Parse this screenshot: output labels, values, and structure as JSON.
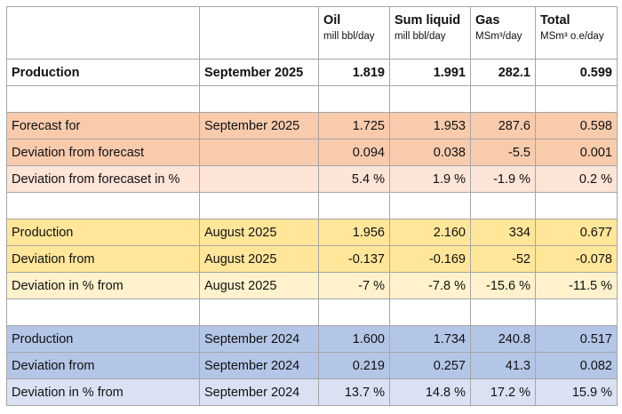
{
  "header": {
    "columns": [
      {
        "name": "Oil",
        "unit": "mill bbl/day"
      },
      {
        "name": "Sum liquid",
        "unit": "mill bbl/day"
      },
      {
        "name": "Gas",
        "unit": "MSm³/day"
      },
      {
        "name": "Total",
        "unit": "MSm³ o.e/day"
      }
    ]
  },
  "groups": [
    {
      "rows": [
        {
          "label": "Production",
          "period": "September 2025",
          "values": [
            "1.819",
            "1.991",
            "282.1",
            "0.599"
          ]
        }
      ]
    },
    {
      "rows": [
        {
          "label": "Forecast for",
          "period": "September 2025",
          "values": [
            "1.725",
            "1.953",
            "287.6",
            "0.598"
          ],
          "fill": "#f8cbad"
        },
        {
          "label": "Deviation from forecast",
          "values": [
            "0.094",
            "0.038",
            "-5.5",
            "0.001"
          ],
          "fill": "#f8cbad"
        },
        {
          "label": "Deviation from forecaset in %",
          "values": [
            "5.4 %",
            "1.9 %",
            "-1.9 %",
            "0.2 %"
          ],
          "fill": "#fce4d6"
        }
      ]
    },
    {
      "rows": [
        {
          "label": "Production",
          "period": "August 2025",
          "values": [
            "1.956",
            "2.160",
            "334",
            "0.677"
          ],
          "fill": "#ffe699"
        },
        {
          "label": "Deviation from",
          "period": "August 2025",
          "values": [
            "-0.137",
            "-0.169",
            "-52",
            "-0.078"
          ],
          "fill": "#ffe699"
        },
        {
          "label": "Deviation in % from",
          "period": "August 2025",
          "values": [
            "-7 %",
            "-7.8 %",
            "-15.6 %",
            "-11.5 %"
          ],
          "fill": "#fff2cc"
        }
      ]
    },
    {
      "rows": [
        {
          "label": "Production",
          "period": "September 2024",
          "values": [
            "1.600",
            "1.734",
            "240.8",
            "0.517"
          ],
          "fill": "#b4c6e7"
        },
        {
          "label": "Deviation from",
          "period": "September 2024",
          "values": [
            "0.219",
            "0.257",
            "41.3",
            "0.082"
          ],
          "fill": "#b4c6e7"
        },
        {
          "label": "Deviation in % from",
          "period": "September 2024",
          "values": [
            "13.7 %",
            "14.8 %",
            "17.2 %",
            "15.9 %"
          ],
          "fill": "#d9e1f2"
        }
      ]
    }
  ]
}
